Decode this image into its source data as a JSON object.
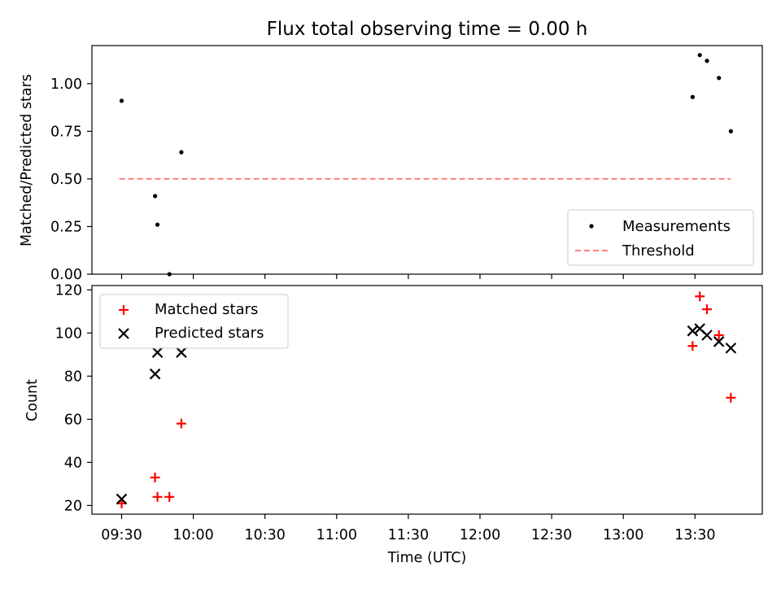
{
  "title": "Flux total observing time = 0.00 h",
  "chart_data": [
    {
      "type": "scatter",
      "ylabel": "Matched/Predicted stars",
      "ylim": [
        0,
        1.2
      ],
      "yticks": [
        0.0,
        0.25,
        0.5,
        0.75,
        1.0
      ],
      "ytick_labels": [
        "0.00",
        "0.25",
        "0.50",
        "0.75",
        "1.00"
      ],
      "legend_position": "lower-right",
      "series": [
        {
          "name": "Measurements",
          "marker": "dot",
          "color": "#000000",
          "points": [
            {
              "x": "09:30",
              "y": 0.91
            },
            {
              "x": "09:44",
              "y": 0.41
            },
            {
              "x": "09:45",
              "y": 0.26
            },
            {
              "x": "09:50",
              "y": 0.0
            },
            {
              "x": "09:55",
              "y": 0.64
            },
            {
              "x": "13:29",
              "y": 0.93
            },
            {
              "x": "13:32",
              "y": 1.15
            },
            {
              "x": "13:35",
              "y": 1.12
            },
            {
              "x": "13:40",
              "y": 1.03
            },
            {
              "x": "13:45",
              "y": 0.75
            }
          ]
        },
        {
          "name": "Threshold",
          "type": "line",
          "dashed": true,
          "color": "#ff7f7f",
          "points": [
            {
              "x": "09:29",
              "y": 0.5
            },
            {
              "x": "13:45",
              "y": 0.5
            }
          ]
        }
      ]
    },
    {
      "type": "scatter",
      "ylabel": "Count",
      "xlabel": "Time (UTC)",
      "ylim": [
        16,
        122
      ],
      "yticks": [
        20,
        40,
        60,
        80,
        100,
        120
      ],
      "xticks": [
        "09:30",
        "10:00",
        "10:30",
        "11:00",
        "11:30",
        "12:00",
        "12:30",
        "13:00",
        "13:30"
      ],
      "legend_position": "upper-left",
      "series": [
        {
          "name": "Matched stars",
          "marker": "plus",
          "color": "#ff0000",
          "points": [
            {
              "x": "09:30",
              "y": 21
            },
            {
              "x": "09:44",
              "y": 33
            },
            {
              "x": "09:45",
              "y": 24
            },
            {
              "x": "09:50",
              "y": 24
            },
            {
              "x": "09:55",
              "y": 58
            },
            {
              "x": "13:29",
              "y": 94
            },
            {
              "x": "13:32",
              "y": 117
            },
            {
              "x": "13:35",
              "y": 111
            },
            {
              "x": "13:40",
              "y": 99
            },
            {
              "x": "13:45",
              "y": 70
            }
          ]
        },
        {
          "name": "Predicted stars",
          "marker": "x",
          "color": "#000000",
          "points": [
            {
              "x": "09:30",
              "y": 23
            },
            {
              "x": "09:44",
              "y": 81
            },
            {
              "x": "09:45",
              "y": 91
            },
            {
              "x": "09:55",
              "y": 91
            },
            {
              "x": "13:29",
              "y": 101
            },
            {
              "x": "13:32",
              "y": 102
            },
            {
              "x": "13:35",
              "y": 99
            },
            {
              "x": "13:40",
              "y": 96
            },
            {
              "x": "13:45",
              "y": 93
            }
          ]
        }
      ]
    }
  ]
}
